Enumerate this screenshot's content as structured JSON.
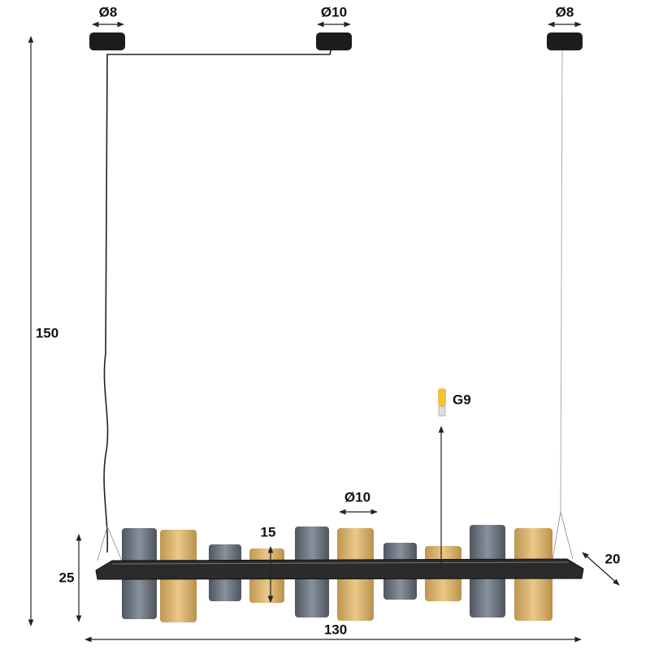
{
  "canopies": [
    {
      "label": "Ø8"
    },
    {
      "label": "Ø10"
    },
    {
      "label": "Ø8"
    }
  ],
  "dimensions": {
    "total_height": "150",
    "width": "130",
    "depth": "20",
    "fixture_height": "25",
    "shade_height": "15",
    "shade_diameter": "Ø10"
  },
  "bulb": "G9"
}
